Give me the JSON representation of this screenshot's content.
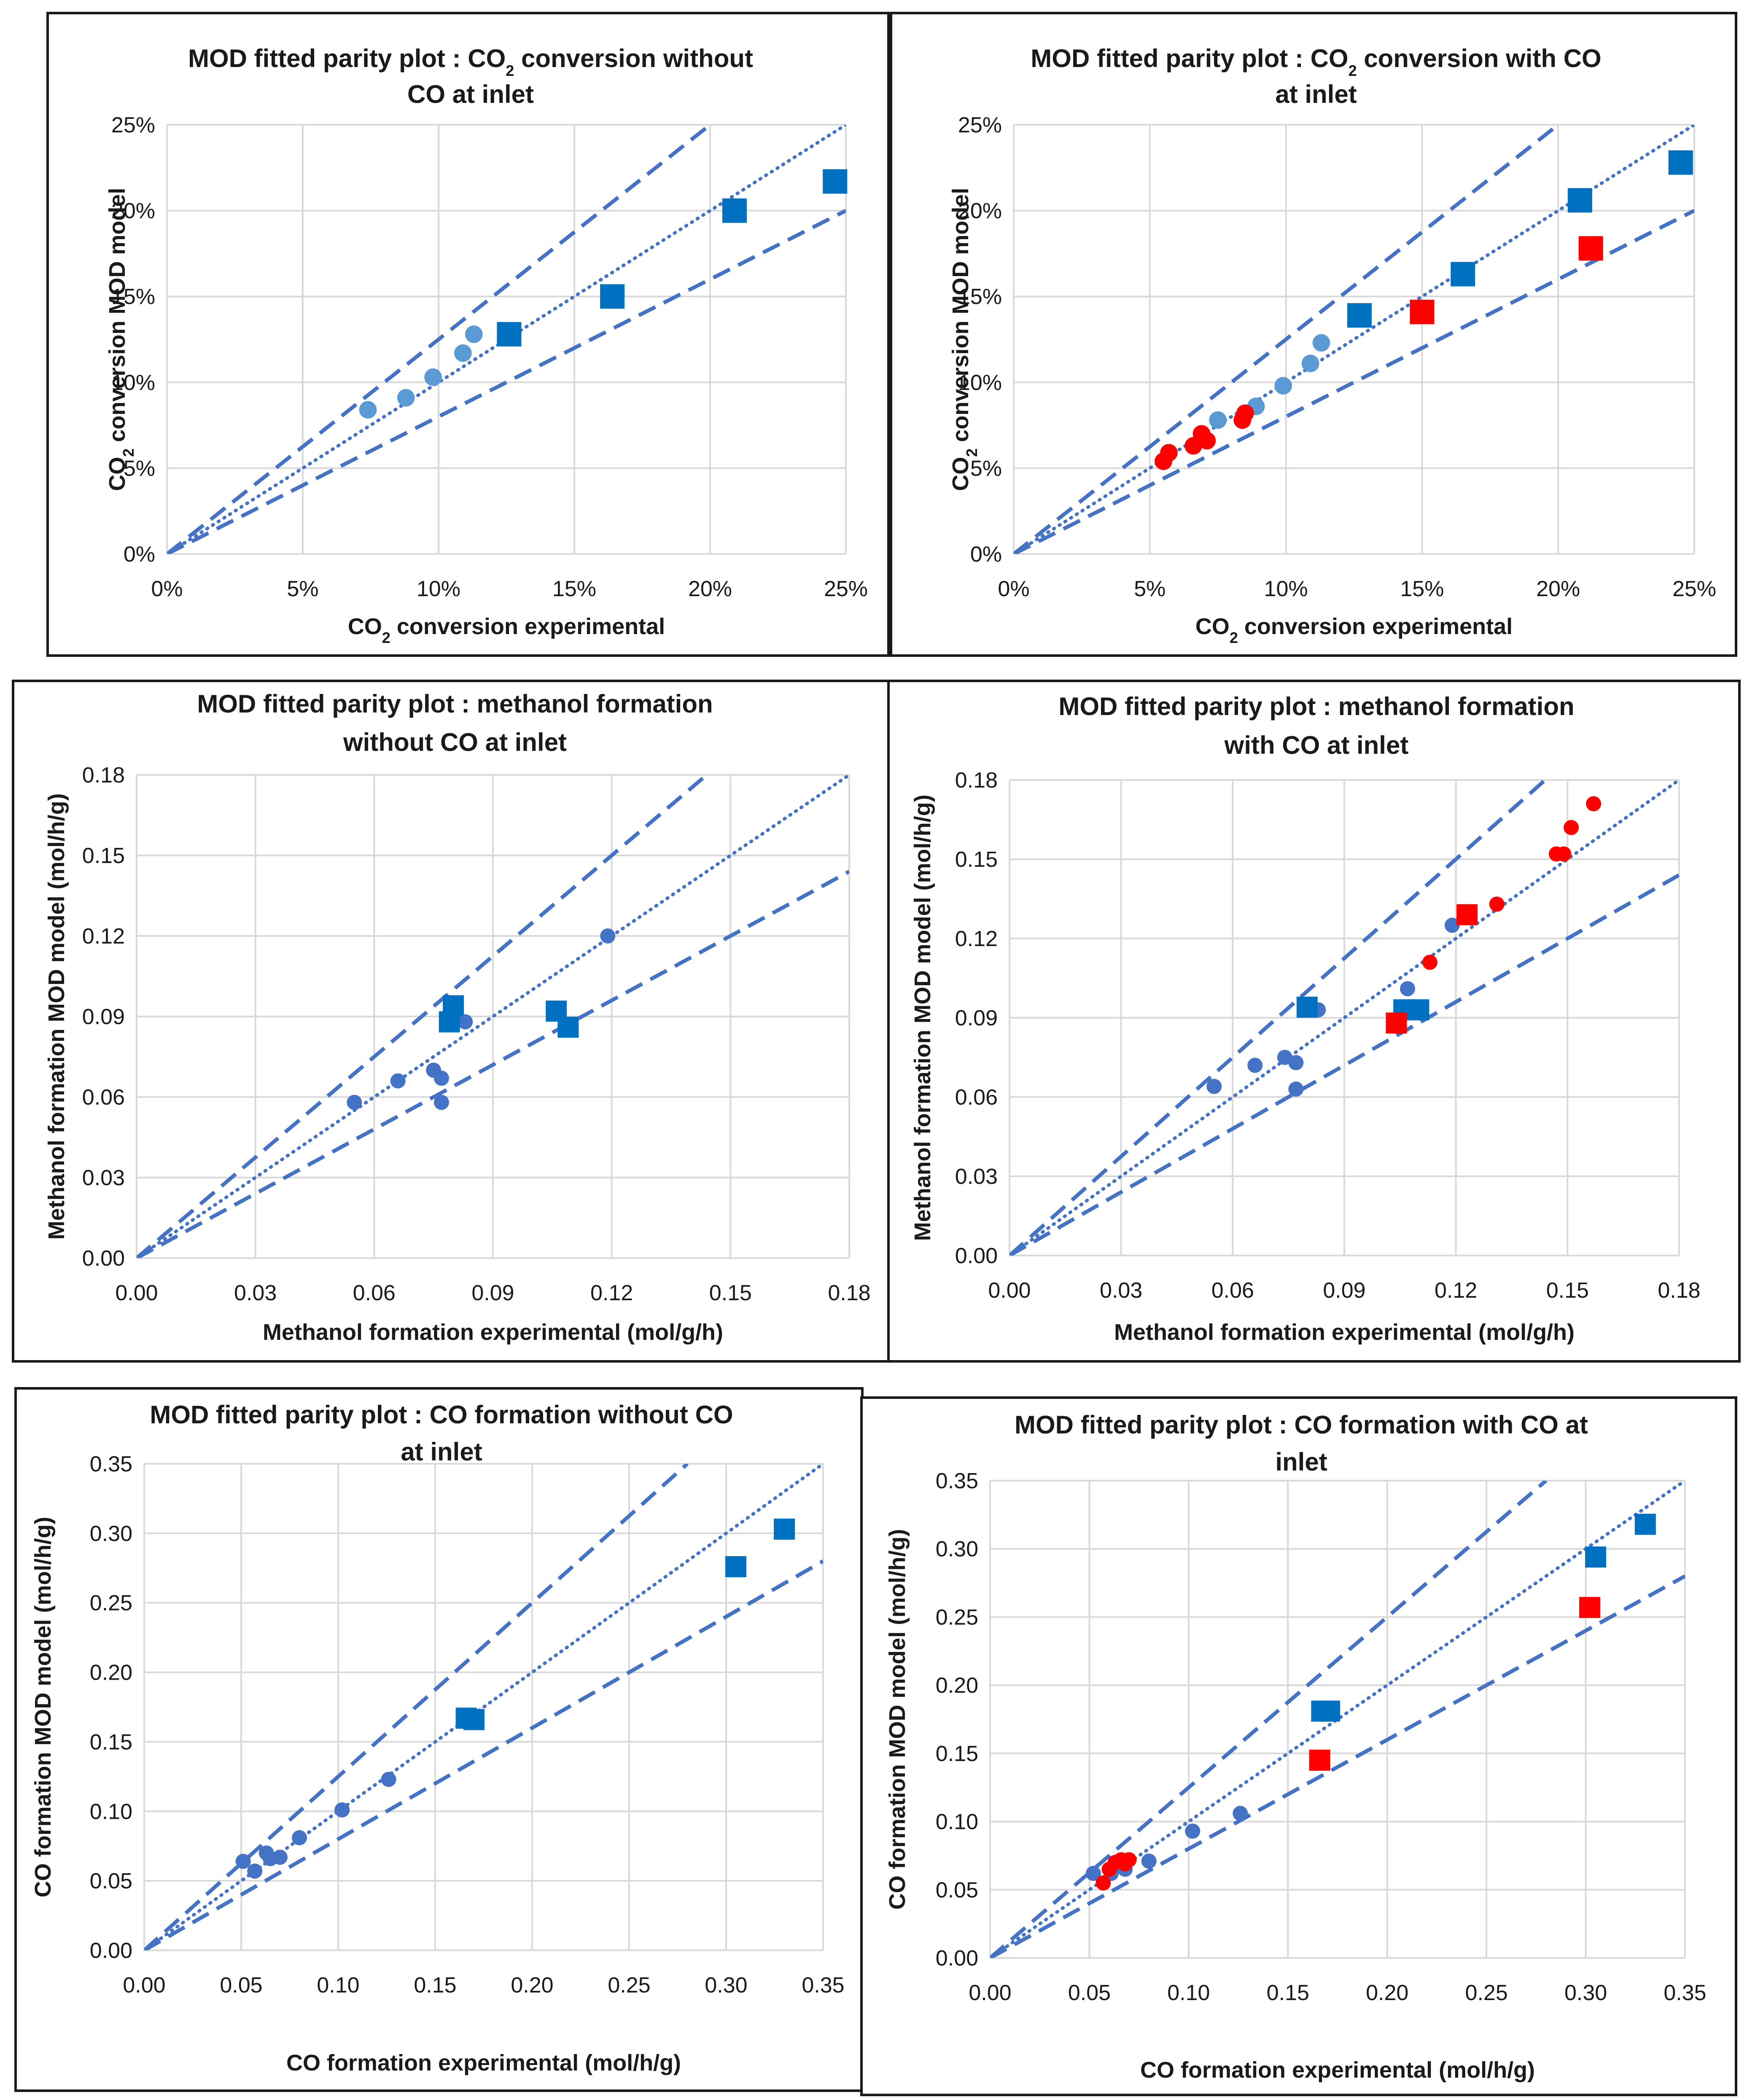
{
  "chart_data": [
    {
      "type": "scatter",
      "title_lines": [
        "MOD fitted parity plot : CO₂ conversion without",
        "CO at inlet"
      ],
      "xlabel": "CO₂ conversion experimental",
      "ylabel": "CO₂ conversion MOD  model",
      "xlim": [
        0,
        0.25
      ],
      "ylim": [
        0,
        0.25
      ],
      "ticks": [
        0,
        0.05,
        0.1,
        0.15,
        0.2,
        0.25
      ],
      "tick_labels": [
        "0%",
        "5%",
        "10%",
        "15%",
        "20%",
        "25%"
      ],
      "grid": true,
      "legend": "none",
      "reference_lines": [
        {
          "name": "parity",
          "style": "dotted",
          "slope": 1.0
        },
        {
          "name": "upper-bound",
          "style": "dashed",
          "slope": 1.25
        },
        {
          "name": "lower-bound",
          "style": "dashed",
          "slope": 0.8
        }
      ],
      "series": [
        {
          "name": "blue-circles",
          "marker": "circle",
          "color": "#5b9bd5",
          "points": [
            [
              0.074,
              0.084
            ],
            [
              0.088,
              0.091
            ],
            [
              0.098,
              0.103
            ],
            [
              0.109,
              0.117
            ],
            [
              0.113,
              0.128
            ]
          ]
        },
        {
          "name": "blue-squares",
          "marker": "square",
          "color": "#0070c0",
          "points": [
            [
              0.126,
              0.128
            ],
            [
              0.164,
              0.15
            ],
            [
              0.209,
              0.2
            ],
            [
              0.246,
              0.217
            ]
          ]
        }
      ]
    },
    {
      "type": "scatter",
      "title_lines": [
        "MOD fitted parity plot : CO₂ conversion with CO",
        "at inlet"
      ],
      "xlabel": "CO₂ conversion experimental",
      "ylabel": "CO₂ conversion MOD  model",
      "xlim": [
        0,
        0.25
      ],
      "ylim": [
        0,
        0.25
      ],
      "ticks": [
        0,
        0.05,
        0.1,
        0.15,
        0.2,
        0.25
      ],
      "tick_labels": [
        "0%",
        "5%",
        "10%",
        "15%",
        "20%",
        "25%"
      ],
      "grid": true,
      "legend": "none",
      "reference_lines": [
        {
          "name": "parity",
          "style": "dotted",
          "slope": 1.0
        },
        {
          "name": "upper-bound",
          "style": "dashed",
          "slope": 1.25
        },
        {
          "name": "lower-bound",
          "style": "dashed",
          "slope": 0.8
        }
      ],
      "series": [
        {
          "name": "blue-circles",
          "marker": "circle",
          "color": "#5b9bd5",
          "points": [
            [
              0.075,
              0.078
            ],
            [
              0.089,
              0.086
            ],
            [
              0.099,
              0.098
            ],
            [
              0.109,
              0.111
            ],
            [
              0.113,
              0.123
            ]
          ]
        },
        {
          "name": "red-circles",
          "marker": "circle",
          "color": "#ff0000",
          "points": [
            [
              0.055,
              0.054
            ],
            [
              0.057,
              0.059
            ],
            [
              0.066,
              0.063
            ],
            [
              0.069,
              0.07
            ],
            [
              0.071,
              0.066
            ],
            [
              0.084,
              0.078
            ],
            [
              0.085,
              0.082
            ]
          ]
        },
        {
          "name": "blue-squares",
          "marker": "square",
          "color": "#0070c0",
          "points": [
            [
              0.127,
              0.139
            ],
            [
              0.165,
              0.163
            ],
            [
              0.208,
              0.206
            ],
            [
              0.245,
              0.228
            ]
          ]
        },
        {
          "name": "red-squares",
          "marker": "square",
          "color": "#ff0000",
          "points": [
            [
              0.15,
              0.141
            ],
            [
              0.212,
              0.178
            ]
          ]
        }
      ]
    },
    {
      "type": "scatter",
      "title_lines": [
        "MOD fitted parity plot : methanol formation",
        "without CO at inlet"
      ],
      "xlabel": "Methanol formation experimental (mol/g/h)",
      "ylabel": "Methanol formation MOD model (mol/h/g)",
      "xlim": [
        0,
        0.18
      ],
      "ylim": [
        0,
        0.18
      ],
      "ticks": [
        0,
        0.03,
        0.06,
        0.09,
        0.12,
        0.15,
        0.18
      ],
      "tick_labels": [
        "0.00",
        "0.03",
        "0.06",
        "0.09",
        "0.12",
        "0.15",
        "0.18"
      ],
      "grid": true,
      "legend": "none",
      "reference_lines": [
        {
          "name": "parity",
          "style": "dotted",
          "slope": 1.0
        },
        {
          "name": "upper-bound",
          "style": "dashed",
          "slope": 1.25
        },
        {
          "name": "lower-bound",
          "style": "dashed",
          "slope": 0.8
        }
      ],
      "series": [
        {
          "name": "blue-circles",
          "marker": "circle",
          "color": "#4472c4",
          "points": [
            [
              0.055,
              0.058
            ],
            [
              0.066,
              0.066
            ],
            [
              0.075,
              0.07
            ],
            [
              0.077,
              0.067
            ],
            [
              0.077,
              0.058
            ],
            [
              0.083,
              0.088
            ],
            [
              0.119,
              0.12
            ]
          ]
        },
        {
          "name": "blue-squares",
          "marker": "square",
          "color": "#0070c0",
          "points": [
            [
              0.08,
              0.094
            ],
            [
              0.079,
              0.088
            ],
            [
              0.106,
              0.092
            ],
            [
              0.109,
              0.086
            ]
          ]
        }
      ]
    },
    {
      "type": "scatter",
      "title_lines": [
        "MOD fitted parity plot : methanol formation",
        "with CO at inlet"
      ],
      "xlabel": "Methanol formation experimental (mol/g/h)",
      "ylabel": "Methanol formation MOD model (mol/h/g)",
      "xlim": [
        0,
        0.18
      ],
      "ylim": [
        0,
        0.18
      ],
      "ticks": [
        0,
        0.03,
        0.06,
        0.09,
        0.12,
        0.15,
        0.18
      ],
      "tick_labels": [
        "0.00",
        "0.03",
        "0.06",
        "0.09",
        "0.12",
        "0.15",
        "0.18"
      ],
      "grid": true,
      "legend": "none",
      "reference_lines": [
        {
          "name": "parity",
          "style": "dotted",
          "slope": 1.0
        },
        {
          "name": "upper-bound",
          "style": "dashed",
          "slope": 1.25
        },
        {
          "name": "lower-bound",
          "style": "dashed",
          "slope": 0.8
        }
      ],
      "series": [
        {
          "name": "blue-circles",
          "marker": "circle",
          "color": "#4472c4",
          "points": [
            [
              0.055,
              0.064
            ],
            [
              0.066,
              0.072
            ],
            [
              0.074,
              0.075
            ],
            [
              0.077,
              0.073
            ],
            [
              0.077,
              0.063
            ],
            [
              0.083,
              0.093
            ],
            [
              0.107,
              0.101
            ],
            [
              0.119,
              0.125
            ]
          ]
        },
        {
          "name": "red-circles",
          "marker": "circle",
          "color": "#ff0000",
          "points": [
            [
              0.113,
              0.111
            ],
            [
              0.131,
              0.133
            ],
            [
              0.147,
              0.152
            ],
            [
              0.149,
              0.152
            ],
            [
              0.151,
              0.162
            ],
            [
              0.157,
              0.171
            ]
          ]
        },
        {
          "name": "blue-squares",
          "marker": "square",
          "color": "#0070c0",
          "points": [
            [
              0.08,
              0.094
            ],
            [
              0.106,
              0.093
            ],
            [
              0.11,
              0.093
            ]
          ]
        },
        {
          "name": "red-squares",
          "marker": "square",
          "color": "#ff0000",
          "points": [
            [
              0.104,
              0.088
            ],
            [
              0.123,
              0.129
            ]
          ]
        }
      ]
    },
    {
      "type": "scatter",
      "title_lines": [
        "MOD fitted parity plot : CO formation without CO",
        "at inlet"
      ],
      "xlabel": "CO formation experimental (mol/h/g)",
      "ylabel": "CO formation MOD model (mol/h/g)",
      "xlim": [
        0,
        0.35
      ],
      "ylim": [
        0,
        0.35
      ],
      "ticks": [
        0,
        0.05,
        0.1,
        0.15,
        0.2,
        0.25,
        0.3,
        0.35
      ],
      "tick_labels": [
        "0.00",
        "0.05",
        "0.10",
        "0.15",
        "0.20",
        "0.25",
        "0.30",
        "0.35"
      ],
      "grid": true,
      "legend": "none",
      "reference_lines": [
        {
          "name": "parity",
          "style": "dotted",
          "slope": 1.0
        },
        {
          "name": "upper-bound",
          "style": "dashed",
          "slope": 1.25
        },
        {
          "name": "lower-bound",
          "style": "dashed",
          "slope": 0.8
        }
      ],
      "series": [
        {
          "name": "blue-circles",
          "marker": "circle",
          "color": "#4472c4",
          "points": [
            [
              0.051,
              0.064
            ],
            [
              0.057,
              0.057
            ],
            [
              0.063,
              0.07
            ],
            [
              0.065,
              0.066
            ],
            [
              0.07,
              0.067
            ],
            [
              0.08,
              0.081
            ],
            [
              0.102,
              0.101
            ],
            [
              0.126,
              0.123
            ]
          ]
        },
        {
          "name": "blue-squares",
          "marker": "square",
          "color": "#0070c0",
          "points": [
            [
              0.166,
              0.167
            ],
            [
              0.17,
              0.166
            ],
            [
              0.305,
              0.276
            ],
            [
              0.33,
              0.303
            ]
          ]
        }
      ]
    },
    {
      "type": "scatter",
      "title_lines": [
        "MOD fitted parity plot : CO formation with CO at",
        "inlet"
      ],
      "xlabel": "CO formation experimental (mol/h/g)",
      "ylabel": "CO formation MOD model (mol/h/g)",
      "xlim": [
        0,
        0.35
      ],
      "ylim": [
        0,
        0.35
      ],
      "ticks": [
        0,
        0.05,
        0.1,
        0.15,
        0.2,
        0.25,
        0.3,
        0.35
      ],
      "tick_labels": [
        "0.00",
        "0.05",
        "0.10",
        "0.15",
        "0.20",
        "0.25",
        "0.30",
        "0.35"
      ],
      "grid": true,
      "legend": "none",
      "reference_lines": [
        {
          "name": "parity",
          "style": "dotted",
          "slope": 1.0
        },
        {
          "name": "upper-bound",
          "style": "dashed",
          "slope": 1.25
        },
        {
          "name": "lower-bound",
          "style": "dashed",
          "slope": 0.8
        }
      ],
      "series": [
        {
          "name": "blue-circles",
          "marker": "circle",
          "color": "#4472c4",
          "points": [
            [
              0.052,
              0.062
            ],
            [
              0.061,
              0.062
            ],
            [
              0.068,
              0.065
            ],
            [
              0.08,
              0.071
            ],
            [
              0.102,
              0.093
            ],
            [
              0.126,
              0.106
            ]
          ]
        },
        {
          "name": "red-circles",
          "marker": "circle",
          "color": "#ff0000",
          "points": [
            [
              0.057,
              0.055
            ],
            [
              0.06,
              0.065
            ],
            [
              0.063,
              0.07
            ],
            [
              0.066,
              0.072
            ],
            [
              0.068,
              0.069
            ],
            [
              0.07,
              0.072
            ]
          ]
        },
        {
          "name": "blue-squares",
          "marker": "square",
          "color": "#0070c0",
          "points": [
            [
              0.167,
              0.181
            ],
            [
              0.171,
              0.181
            ],
            [
              0.305,
              0.294
            ],
            [
              0.33,
              0.318
            ]
          ]
        },
        {
          "name": "red-squares",
          "marker": "square",
          "color": "#ff0000",
          "points": [
            [
              0.166,
              0.145
            ],
            [
              0.302,
              0.257
            ]
          ]
        }
      ]
    }
  ]
}
